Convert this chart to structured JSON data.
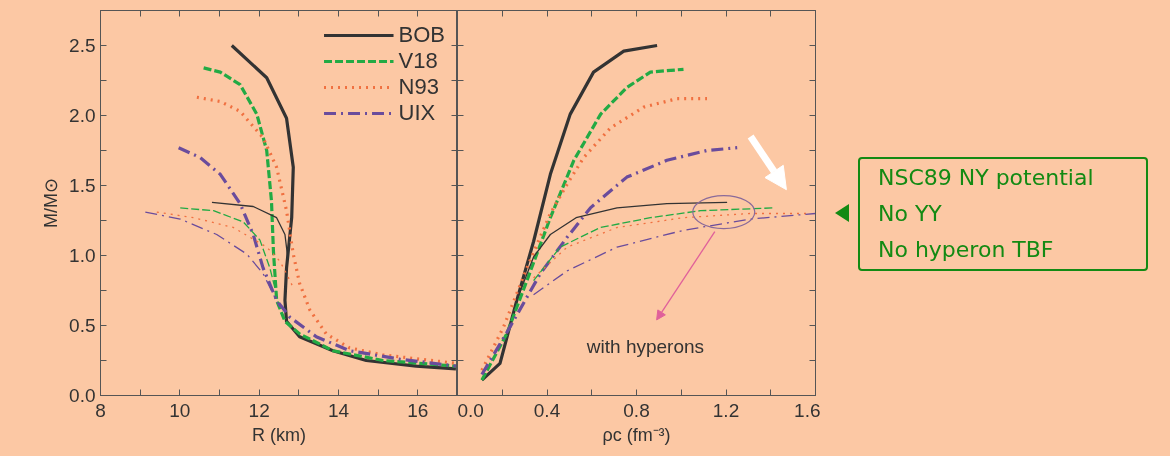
{
  "chart_data": [
    {
      "type": "line",
      "xlabel": "R (km)",
      "ylabel": "M/M⊙",
      "xlim": [
        8,
        17
      ],
      "ylim": [
        0,
        2.75
      ],
      "xticks": [
        8,
        {
          "value": 9,
          "label": null
        },
        10,
        {
          "value": 11,
          "label": null
        },
        12,
        {
          "value": 13,
          "label": null
        },
        14,
        {
          "value": 15,
          "label": null
        },
        16
      ],
      "yticks": [
        {
          "value": 0,
          "label": "0.0"
        },
        {
          "value": 0.25,
          "label": null
        },
        {
          "value": 0.5,
          "label": "0.5"
        },
        {
          "value": 0.75,
          "label": null
        },
        {
          "value": 1,
          "label": "1.0"
        },
        {
          "value": 1.25,
          "label": null
        },
        {
          "value": 1.5,
          "label": "1.5"
        },
        {
          "value": 1.75,
          "label": null
        },
        {
          "value": 2,
          "label": "2.0"
        },
        {
          "value": 2.25,
          "label": null
        },
        {
          "value": 2.5,
          "label": "2.5"
        }
      ],
      "legend": "top right",
      "grid": false,
      "series": [
        {
          "name": "BOB",
          "color": "#333333",
          "line_style": "solid",
          "x": [
            11.31,
            12.19,
            12.69,
            12.86,
            12.82,
            12.69,
            12.65,
            12.69,
            13.02,
            13.86,
            14.7,
            15.96,
            16.96
          ],
          "values": [
            2.5,
            2.27,
            1.98,
            1.63,
            1.27,
            0.91,
            0.68,
            0.53,
            0.42,
            0.32,
            0.25,
            0.21,
            0.19
          ]
        },
        {
          "name": "V18",
          "color": "#22aa44",
          "line_style": "dashed",
          "x": [
            10.6,
            11.02,
            11.52,
            11.94,
            12.19,
            12.31,
            12.36,
            12.44,
            12.65,
            13.02,
            13.86,
            15.12,
            16.96
          ],
          "values": [
            2.34,
            2.31,
            2.22,
            2.01,
            1.75,
            1.39,
            1.03,
            0.68,
            0.53,
            0.44,
            0.32,
            0.25,
            0.21
          ]
        },
        {
          "name": "N93",
          "color": "#f07040",
          "line_style": "dotted",
          "x": [
            10.43,
            11.02,
            11.52,
            12.1,
            12.44,
            12.69,
            12.86,
            13.02,
            13.28,
            13.69,
            14.28,
            15.12,
            16.96
          ],
          "values": [
            2.13,
            2.1,
            2.03,
            1.84,
            1.63,
            1.32,
            1.01,
            0.8,
            0.61,
            0.44,
            0.34,
            0.29,
            0.23
          ]
        },
        {
          "name": "UIX",
          "color": "#6a4c9c",
          "line_style": "dashdot",
          "x": [
            9.97,
            10.51,
            11.02,
            11.52,
            11.85,
            12.1,
            12.44,
            12.77,
            13.44,
            14.28,
            15.54,
            16.96
          ],
          "values": [
            1.77,
            1.7,
            1.58,
            1.37,
            1.15,
            0.91,
            0.68,
            0.56,
            0.42,
            0.32,
            0.26,
            0.21
          ]
        },
        {
          "color": "#333333",
          "line_style": "solid",
          "x": [
            10.81,
            11.85,
            12.44,
            12.65,
            12.71,
            12.71
          ],
          "values": [
            1.38,
            1.35,
            1.27,
            1.15,
            1.01,
            0.96
          ]
        },
        {
          "color": "#22aa44",
          "line_style": "dashed",
          "x": [
            10.01,
            10.85,
            11.6,
            12.02,
            12.27,
            12.44
          ],
          "values": [
            1.34,
            1.32,
            1.24,
            1.11,
            0.91,
            0.72
          ]
        },
        {
          "color": "#f07040",
          "line_style": "dotted",
          "x": [
            9.42,
            10.35,
            11.35,
            12.19,
            12.52,
            12.69,
            12.86
          ],
          "values": [
            1.31,
            1.27,
            1.2,
            1.06,
            0.96,
            0.87,
            0.77
          ]
        },
        {
          "color": "#6a4c9c",
          "line_style": "dashdot",
          "x": [
            9.13,
            10.01,
            10.93,
            11.69,
            12.1,
            12.36,
            12.52
          ],
          "values": [
            1.31,
            1.26,
            1.15,
            1.01,
            0.87,
            0.72,
            0.63
          ]
        }
      ]
    },
    {
      "type": "line",
      "xlabel": "ρc (fm⁻³)",
      "xlim": [
        0,
        1.6
      ],
      "ylim": [
        0,
        2.75
      ],
      "tick_labels": "x",
      "grid": false,
      "xticks": [
        {
          "value": 0,
          "label": "0.0"
        },
        {
          "value": 0.2,
          "label": null
        },
        0.4,
        {
          "value": 0.6,
          "label": null
        },
        0.8,
        {
          "value": 1,
          "label": null
        },
        1.2,
        {
          "value": 1.4,
          "label": null
        },
        1.6
      ],
      "yticks": [
        {
          "value": 0,
          "label": null
        },
        {
          "value": 0.25,
          "label": null
        },
        {
          "value": 0.5,
          "label": null
        },
        {
          "value": 0.75,
          "label": null
        },
        {
          "value": 1,
          "label": null
        },
        {
          "value": 1.25,
          "label": null
        },
        {
          "value": 1.5,
          "label": null
        },
        {
          "value": 1.75,
          "label": null
        },
        {
          "value": 2,
          "label": null
        },
        {
          "value": 2.25,
          "label": null
        },
        {
          "value": 2.5,
          "label": null
        }
      ],
      "annotations": [
        "with hyperons",
        "NSC89 NY potential",
        "No YY",
        "No hyperon TBF"
      ],
      "series": [
        {
          "color": "#333333",
          "line_style": "solid",
          "x": [
            0.109,
            0.19,
            0.265,
            0.34,
            0.415,
            0.504,
            0.608,
            0.743,
            0.892
          ],
          "values": [
            0.11,
            0.23,
            0.68,
            1.1,
            1.58,
            2.01,
            2.31,
            2.46,
            2.5
          ]
        },
        {
          "color": "#22aa44",
          "line_style": "dashed",
          "x": [
            0.109,
            0.22,
            0.31,
            0.415,
            0.52,
            0.64,
            0.757,
            0.862,
            1.01
          ],
          "values": [
            0.11,
            0.44,
            0.82,
            1.27,
            1.68,
            2.01,
            2.2,
            2.31,
            2.33
          ]
        },
        {
          "color": "#f07040",
          "line_style": "dotted",
          "x": [
            0.109,
            0.206,
            0.31,
            0.415,
            0.49,
            0.564,
            0.683,
            0.832,
            0.981,
            1.115
          ],
          "values": [
            0.18,
            0.49,
            0.91,
            1.3,
            1.51,
            1.7,
            1.91,
            2.06,
            2.12,
            2.12
          ]
        },
        {
          "color": "#6a4c9c",
          "line_style": "dashdot",
          "x": [
            0.109,
            0.235,
            0.37,
            0.49,
            0.594,
            0.757,
            0.936,
            1.115,
            1.25
          ],
          "values": [
            0.15,
            0.49,
            0.87,
            1.13,
            1.34,
            1.56,
            1.68,
            1.75,
            1.77
          ]
        },
        {
          "color": "#333333",
          "line_style": "solid",
          "x": [
            0.265,
            0.34,
            0.415,
            0.53,
            0.713,
            0.936,
            1.205
          ],
          "values": [
            0.68,
            0.99,
            1.15,
            1.27,
            1.34,
            1.37,
            1.38
          ]
        },
        {
          "color": "#22aa44",
          "line_style": "dashed",
          "x": [
            0.34,
            0.459,
            0.638,
            0.862,
            1.086,
            1.414
          ],
          "values": [
            0.82,
            1.06,
            1.2,
            1.27,
            1.32,
            1.34
          ]
        },
        {
          "color": "#f07040",
          "line_style": "dotted",
          "x": [
            0.34,
            0.49,
            0.713,
            1.01,
            1.308,
            1.563
          ],
          "values": [
            0.84,
            1.06,
            1.2,
            1.27,
            1.3,
            1.3
          ]
        },
        {
          "color": "#6a4c9c",
          "line_style": "dashdot",
          "x": [
            0.34,
            0.49,
            0.713,
            1.01,
            1.308,
            1.6
          ],
          "values": [
            0.72,
            0.89,
            1.06,
            1.18,
            1.26,
            1.3
          ]
        }
      ]
    }
  ]
}
